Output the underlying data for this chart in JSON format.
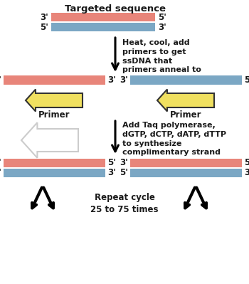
{
  "bg_color": "#ffffff",
  "salmon": "#E8857A",
  "blue": "#7BA7C4",
  "arrow_color": "#F0E060",
  "arrow_edge": "#333333",
  "text_color": "#1a1a1a",
  "title": "Targeted sequence",
  "step1_text": "Heat, cool, add\nprimers to get\nssDNA that\nprimers anneal to",
  "step2_text": "Add Taq polymerase,\ndGTP, dCTP, dATP, dTTP\nto synthesize\ncomplimentary strand",
  "step3_text": "Repeat cycle\n25 to 75 times",
  "primer_label": "Primer"
}
